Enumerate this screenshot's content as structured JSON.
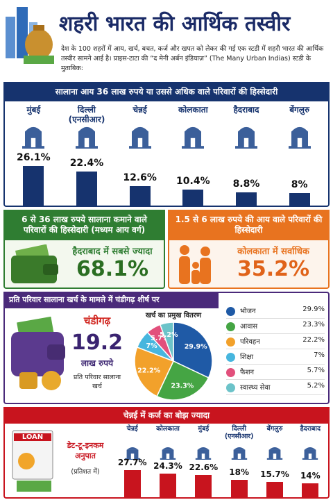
{
  "header": {
    "title": "शहरी भारत की आर्थिक तस्वीर",
    "intro": "देश के 100 शहरों में आय, खर्च, बचत, कर्ज और खपत को लेकर की गई एक स्टडी में शहरी भारत की आर्थिक तस्वीर सामने आई है। प्राइस-टाटा की “द मेनी अर्बन इंडियाज़” (The Many Urban Indias) स्टडी के मुताबिक:"
  },
  "chart_data": [
    {
      "type": "bar",
      "title": "सालाना आय 36 लाख रुपये या उससे अधिक वाले परिवारों की हिस्सेदारी",
      "categories": [
        "मुंबई",
        "दिल्ली (एनसीआर)",
        "चेन्नई",
        "कोलकाता",
        "हैदराबाद",
        "बेंगलुरु"
      ],
      "values": [
        26.1,
        22.4,
        12.6,
        10.4,
        8.8,
        8
      ],
      "value_labels": [
        "26.1%",
        "22.4%",
        "12.6%",
        "10.4%",
        "8.8%",
        "8%"
      ],
      "color": "#16336e"
    },
    {
      "type": "pie",
      "title": "खर्च का प्रमुख वितरण",
      "categories": [
        "भोजन",
        "आवास",
        "परिवहन",
        "शिक्षा",
        "फैशन",
        "स्वास्थ्य सेवा"
      ],
      "values": [
        29.9,
        23.3,
        22.2,
        7,
        5.7,
        5.2
      ],
      "value_labels": [
        "29.9%",
        "23.3%",
        "22.2%",
        "7%",
        "5.7%",
        "5.2%"
      ],
      "colors": [
        "#1f5aa6",
        "#45a544",
        "#f2a12b",
        "#47b6de",
        "#e2507c",
        "#6cc3c9"
      ]
    },
    {
      "type": "bar",
      "title": "चेन्नई में कर्ज का बोझ ज्यादा",
      "ylabel": "डेट-टू-इनकम अनुपात",
      "ylabel_note": "(प्रतिशत में)",
      "categories": [
        "चेन्नई",
        "कोलकाता",
        "मुंबई",
        "दिल्ली (एनसीआर)",
        "बेंगलुरु",
        "हैदराबाद"
      ],
      "values": [
        27.7,
        24.3,
        22.6,
        18,
        15.7,
        14
      ],
      "value_labels": [
        "27.7%",
        "24.3%",
        "22.6%",
        "18%",
        "15.7%",
        "14%"
      ],
      "color": "#c8141e"
    }
  ],
  "middle": [
    {
      "title": "6 से 36 लाख रुपये सालाना कमाने वाले परिवारों की हिस्सेदारी (मध्यम आय वर्ग)",
      "highlight": "हैदराबाद में सबसे ज्यादा",
      "value": "68.1%"
    },
    {
      "title": "1.5 से 6 लाख रुपये की आय वाले परिवारों की हिस्सेदारी",
      "highlight": "कोलकाता में सर्वाधिक",
      "value": "35.2%"
    }
  ],
  "spending": {
    "title": "प्रति परिवार सालाना खर्च के मामले में चंडीगढ़ शीर्ष पर",
    "city": "चंडीगढ़",
    "amount": "19.2",
    "unit": "लाख रुपये",
    "note": "प्रति परिवार सालाना खर्च"
  },
  "loan_icon": "LOAN"
}
